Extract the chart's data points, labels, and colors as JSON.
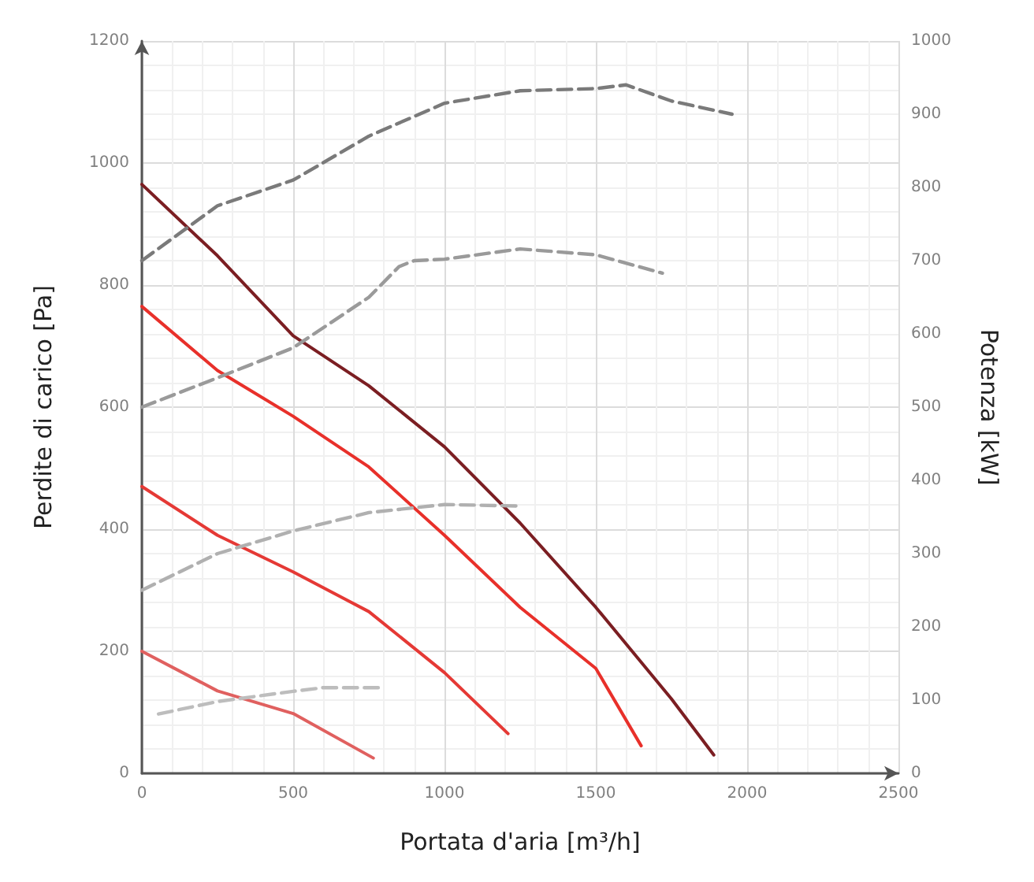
{
  "chart_data": {
    "type": "line",
    "xlabel": "Portata d'aria [m³/h]",
    "ylabel": "Perdite di carico [Pa]",
    "y2label": "Potenza [kW]",
    "xlim": [
      0,
      2500
    ],
    "xticks": [
      0,
      500,
      1000,
      1500,
      2000,
      2500
    ],
    "ylim": [
      0,
      1200
    ],
    "yticks": [
      0,
      200,
      400,
      600,
      800,
      1000,
      1200
    ],
    "y2lim": [
      0,
      1000
    ],
    "y2ticks": [
      0,
      100,
      200,
      300,
      400,
      500,
      600,
      700,
      800,
      900,
      1000
    ],
    "grid": true,
    "marker": "none",
    "series": [
      {
        "color": "#7b1e22",
        "line_style": "solid",
        "x": [
          0,
          250,
          500,
          750,
          1000,
          1250,
          1500,
          1750,
          1890
        ],
        "values": [
          965,
          848,
          717,
          635,
          535,
          410,
          272,
          122,
          30
        ]
      },
      {
        "color": "#e8302a",
        "line_style": "solid",
        "x": [
          0,
          250,
          500,
          750,
          1000,
          1250,
          1500,
          1650
        ],
        "values": [
          765,
          660,
          585,
          502,
          390,
          272,
          172,
          45
        ]
      },
      {
        "color": "#e53935",
        "line_style": "solid",
        "x": [
          0,
          250,
          500,
          750,
          1000,
          1210
        ],
        "values": [
          470,
          390,
          330,
          265,
          165,
          65
        ]
      },
      {
        "color": "#e0605f",
        "line_style": "solid",
        "x": [
          0,
          250,
          500,
          765
        ],
        "values": [
          200,
          135,
          98,
          25
        ]
      },
      {
        "color": "#7a7a7a",
        "line_style": "dashed",
        "axis": "y2",
        "x": [
          0,
          250,
          500,
          750,
          1000,
          1250,
          1500,
          1600,
          1750,
          1950
        ],
        "values": [
          700,
          775,
          810,
          870,
          915,
          932,
          935,
          940,
          918,
          900
        ]
      },
      {
        "color": "#9a9a9a",
        "line_style": "dashed",
        "axis": "y2",
        "x": [
          0,
          250,
          500,
          750,
          850,
          900,
          1000,
          1250,
          1500,
          1720
        ],
        "values": [
          500,
          540,
          581,
          650,
          692,
          700,
          702,
          716,
          708,
          683
        ]
      },
      {
        "color": "#b0b0b0",
        "line_style": "dashed",
        "axis": "y2",
        "x": [
          0,
          250,
          500,
          750,
          1000,
          1250
        ],
        "values": [
          250,
          300,
          331,
          356,
          367,
          365
        ]
      },
      {
        "color": "#bdbdbd",
        "line_style": "dashed",
        "axis": "y2",
        "x": [
          55,
          250,
          500,
          600,
          800
        ],
        "values": [
          81,
          98,
          112,
          117,
          117
        ]
      }
    ]
  }
}
